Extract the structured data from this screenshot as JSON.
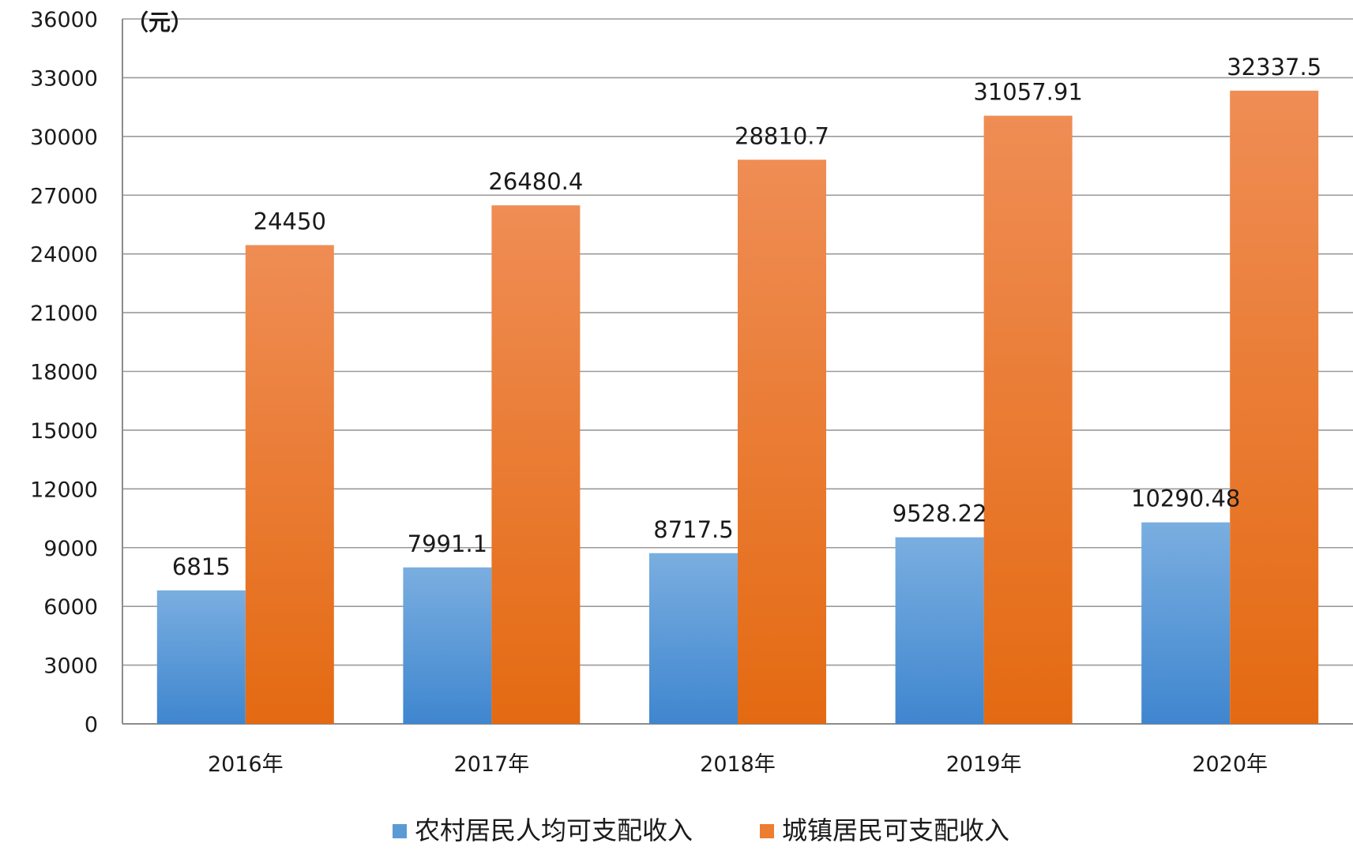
{
  "chart_data": {
    "type": "bar",
    "unit_label": "（元）",
    "categories": [
      "2016年",
      "2017年",
      "2018年",
      "2019年",
      "2020年"
    ],
    "series": [
      {
        "name": "农村居民人均可支配收入",
        "values": [
          6815,
          7991.1,
          8717.5,
          9528.22,
          10290.48
        ],
        "value_labels": [
          "6815",
          "7991.1",
          "8717.5",
          "9528.22",
          "10290.48"
        ],
        "color": "#5b9bd5"
      },
      {
        "name": "城镇居民可支配收入",
        "values": [
          24450,
          26480.4,
          28810.7,
          31057.91,
          32337.5
        ],
        "value_labels": [
          "24450",
          "26480.4",
          "28810.7",
          "31057.91",
          "32337.5"
        ],
        "color": "#ed7d31"
      }
    ],
    "ylim": [
      0,
      36000
    ],
    "yticks": [
      0,
      3000,
      6000,
      9000,
      12000,
      15000,
      18000,
      21000,
      24000,
      27000,
      30000,
      33000,
      36000
    ],
    "grid": true,
    "legend": "bottom"
  }
}
